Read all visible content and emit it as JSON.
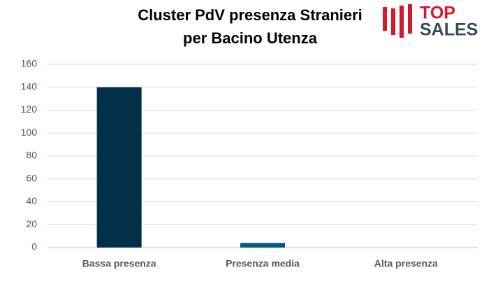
{
  "chart_data": {
    "type": "bar",
    "title": [
      "Cluster PdV presenza Stranieri",
      "per Bacino Utenza"
    ],
    "categories": [
      "Bassa presenza",
      "Presenza media",
      "Alta presenza"
    ],
    "values": [
      140,
      4,
      0
    ],
    "colors": [
      "#002f47",
      "#005a80",
      "#005a80"
    ],
    "ylim": [
      0,
      160
    ],
    "yticks": [
      0,
      20,
      40,
      60,
      80,
      100,
      120,
      140,
      160
    ],
    "grid": true
  },
  "logo": {
    "line1": "TOP",
    "line2": "SALES"
  }
}
